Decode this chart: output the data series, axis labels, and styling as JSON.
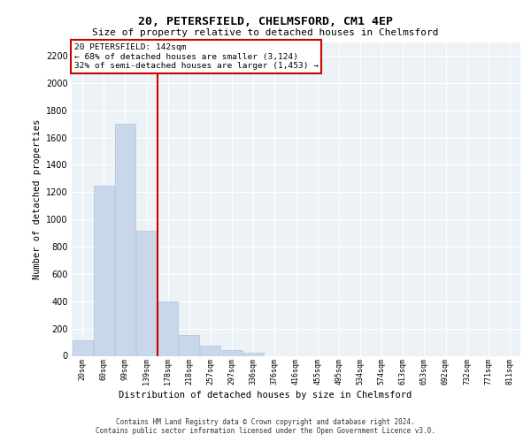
{
  "title_line1": "20, PETERSFIELD, CHELMSFORD, CM1 4EP",
  "title_line2": "Size of property relative to detached houses in Chelmsford",
  "xlabel": "Distribution of detached houses by size in Chelmsford",
  "ylabel": "Number of detached properties",
  "footnote1": "Contains HM Land Registry data © Crown copyright and database right 2024.",
  "footnote2": "Contains public sector information licensed under the Open Government Licence v3.0.",
  "annotation_line1": "20 PETERSFIELD: 142sqm",
  "annotation_line2": "← 68% of detached houses are smaller (3,124)",
  "annotation_line3": "32% of semi-detached houses are larger (1,453) →",
  "categories": [
    "20sqm",
    "60sqm",
    "99sqm",
    "139sqm",
    "178sqm",
    "218sqm",
    "257sqm",
    "297sqm",
    "336sqm",
    "376sqm",
    "416sqm",
    "455sqm",
    "495sqm",
    "534sqm",
    "574sqm",
    "613sqm",
    "653sqm",
    "692sqm",
    "732sqm",
    "771sqm",
    "811sqm"
  ],
  "values": [
    115,
    1245,
    1700,
    920,
    400,
    155,
    75,
    40,
    25,
    0,
    0,
    0,
    0,
    0,
    0,
    0,
    0,
    0,
    0,
    0,
    0
  ],
  "bar_color": "#c8d8ea",
  "bar_edgecolor": "#adc4da",
  "vline_color": "#cc0000",
  "annotation_box_edgecolor": "#cc0000",
  "ylim": [
    0,
    2300
  ],
  "yticks": [
    0,
    200,
    400,
    600,
    800,
    1000,
    1200,
    1400,
    1600,
    1800,
    2000,
    2200
  ],
  "bg_color": "#edf2f7",
  "grid_color": "#ffffff",
  "fig_bg": "#ffffff"
}
